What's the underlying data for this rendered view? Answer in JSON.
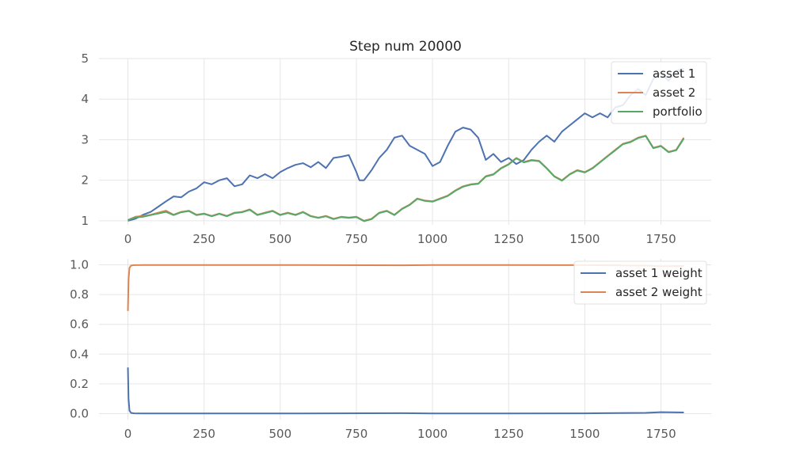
{
  "figure": {
    "title": "Step num 20000"
  },
  "colors": {
    "blue": "#4c72b0",
    "orange": "#dd8452",
    "green": "#55a868"
  },
  "chart_data": [
    {
      "id": "prices",
      "type": "line",
      "title": "Step num 20000",
      "xlim": [
        -95,
        1915
      ],
      "ylim": [
        0.9,
        5.0
      ],
      "xticks": [
        0,
        250,
        500,
        750,
        1000,
        1250,
        1500,
        1750
      ],
      "yticks": [
        1,
        2,
        3,
        4,
        5
      ],
      "legend_position": "top-right",
      "grid": true,
      "series": [
        {
          "name": "asset 1",
          "color": "#4c72b0",
          "x": [
            0,
            25,
            50,
            75,
            100,
            125,
            150,
            175,
            200,
            225,
            250,
            275,
            300,
            325,
            350,
            375,
            400,
            425,
            450,
            475,
            500,
            525,
            550,
            575,
            600,
            625,
            650,
            675,
            700,
            725,
            750,
            760,
            775,
            800,
            825,
            850,
            875,
            900,
            925,
            950,
            975,
            1000,
            1025,
            1050,
            1075,
            1100,
            1125,
            1150,
            1175,
            1200,
            1225,
            1250,
            1275,
            1300,
            1325,
            1350,
            1375,
            1400,
            1425,
            1450,
            1475,
            1500,
            1525,
            1550,
            1575,
            1600,
            1625,
            1650,
            1675,
            1700,
            1725,
            1750,
            1775,
            1800,
            1825
          ],
          "values": [
            1.0,
            1.05,
            1.15,
            1.22,
            1.35,
            1.48,
            1.6,
            1.58,
            1.72,
            1.8,
            1.95,
            1.9,
            2.0,
            2.05,
            1.85,
            1.9,
            2.12,
            2.05,
            2.15,
            2.05,
            2.2,
            2.3,
            2.38,
            2.42,
            2.32,
            2.45,
            2.3,
            2.55,
            2.58,
            2.62,
            2.2,
            2.0,
            2.0,
            2.25,
            2.55,
            2.75,
            3.05,
            3.1,
            2.85,
            2.75,
            2.65,
            2.35,
            2.45,
            2.85,
            3.2,
            3.3,
            3.25,
            3.05,
            2.5,
            2.65,
            2.45,
            2.55,
            2.4,
            2.5,
            2.75,
            2.95,
            3.1,
            2.95,
            3.2,
            3.35,
            3.5,
            3.65,
            3.55,
            3.65,
            3.55,
            3.8,
            3.85,
            4.1,
            4.25,
            4.1,
            4.5,
            4.65,
            4.45,
            4.7,
            4.75
          ]
        },
        {
          "name": "asset 2",
          "color": "#dd8452",
          "x": [
            0,
            25,
            50,
            75,
            100,
            125,
            150,
            175,
            200,
            225,
            250,
            275,
            300,
            325,
            350,
            375,
            400,
            425,
            450,
            475,
            500,
            525,
            550,
            575,
            600,
            625,
            650,
            675,
            700,
            725,
            750,
            775,
            800,
            825,
            850,
            875,
            900,
            925,
            950,
            975,
            1000,
            1025,
            1050,
            1075,
            1100,
            1125,
            1150,
            1175,
            1200,
            1225,
            1250,
            1275,
            1300,
            1325,
            1350,
            1375,
            1400,
            1425,
            1450,
            1475,
            1500,
            1525,
            1550,
            1575,
            1600,
            1625,
            1650,
            1675,
            1700,
            1725,
            1750,
            1775,
            1800,
            1825
          ],
          "values": [
            1.02,
            1.1,
            1.12,
            1.15,
            1.2,
            1.25,
            1.15,
            1.22,
            1.25,
            1.15,
            1.18,
            1.12,
            1.18,
            1.12,
            1.2,
            1.22,
            1.28,
            1.15,
            1.2,
            1.25,
            1.15,
            1.2,
            1.15,
            1.22,
            1.12,
            1.08,
            1.12,
            1.05,
            1.1,
            1.08,
            1.1,
            1.0,
            1.05,
            1.2,
            1.25,
            1.15,
            1.3,
            1.4,
            1.55,
            1.5,
            1.48,
            1.55,
            1.62,
            1.75,
            1.85,
            1.9,
            1.92,
            2.1,
            2.15,
            2.3,
            2.4,
            2.55,
            2.45,
            2.5,
            2.48,
            2.3,
            2.1,
            2.0,
            2.15,
            2.25,
            2.2,
            2.3,
            2.45,
            2.6,
            2.75,
            2.9,
            2.95,
            3.05,
            3.1,
            2.8,
            2.85,
            2.7,
            2.75,
            3.05
          ]
        },
        {
          "name": "portfolio",
          "color": "#55a868",
          "x": [
            0,
            25,
            50,
            75,
            100,
            125,
            150,
            175,
            200,
            225,
            250,
            275,
            300,
            325,
            350,
            375,
            400,
            425,
            450,
            475,
            500,
            525,
            550,
            575,
            600,
            625,
            650,
            675,
            700,
            725,
            750,
            775,
            800,
            825,
            850,
            875,
            900,
            925,
            950,
            975,
            1000,
            1025,
            1050,
            1075,
            1100,
            1125,
            1150,
            1175,
            1200,
            1225,
            1250,
            1275,
            1300,
            1325,
            1350,
            1375,
            1400,
            1425,
            1450,
            1475,
            1500,
            1525,
            1550,
            1575,
            1600,
            1625,
            1650,
            1675,
            1700,
            1725,
            1750,
            1775,
            1800,
            1825
          ],
          "values": [
            1.02,
            1.08,
            1.1,
            1.14,
            1.18,
            1.22,
            1.14,
            1.21,
            1.24,
            1.14,
            1.17,
            1.11,
            1.17,
            1.11,
            1.19,
            1.21,
            1.27,
            1.14,
            1.19,
            1.24,
            1.14,
            1.19,
            1.14,
            1.21,
            1.11,
            1.07,
            1.11,
            1.04,
            1.09,
            1.07,
            1.09,
            0.99,
            1.04,
            1.19,
            1.24,
            1.14,
            1.29,
            1.39,
            1.54,
            1.49,
            1.47,
            1.54,
            1.61,
            1.74,
            1.84,
            1.89,
            1.91,
            2.09,
            2.14,
            2.29,
            2.39,
            2.54,
            2.44,
            2.49,
            2.47,
            2.29,
            2.09,
            1.99,
            2.14,
            2.24,
            2.19,
            2.29,
            2.44,
            2.59,
            2.74,
            2.89,
            2.94,
            3.04,
            3.09,
            2.79,
            2.84,
            2.69,
            2.74,
            3.03
          ]
        }
      ]
    },
    {
      "id": "weights",
      "type": "line",
      "xlim": [
        -95,
        1915
      ],
      "ylim": [
        -0.04,
        1.04
      ],
      "xticks": [
        0,
        250,
        500,
        750,
        1000,
        1250,
        1500,
        1750
      ],
      "yticks": [
        0.0,
        0.2,
        0.4,
        0.6,
        0.8,
        1.0
      ],
      "ytick_labels": [
        "0.0",
        "0.2",
        "0.4",
        "0.6",
        "0.8",
        "1.0"
      ],
      "legend_position": "top-right",
      "grid": true,
      "series": [
        {
          "name": "asset 1 weight",
          "color": "#4c72b0",
          "x": [
            0,
            2,
            5,
            10,
            20,
            50,
            100,
            500,
            900,
            1000,
            1500,
            1700,
            1750,
            1825
          ],
          "values": [
            0.31,
            0.1,
            0.02,
            0.005,
            0.002,
            0.001,
            0.001,
            0.001,
            0.003,
            0.001,
            0.002,
            0.005,
            0.01,
            0.008
          ]
        },
        {
          "name": "asset 2 weight",
          "color": "#dd8452",
          "x": [
            0,
            2,
            5,
            10,
            20,
            50,
            100,
            500,
            900,
            1000,
            1500,
            1700,
            1750,
            1825
          ],
          "values": [
            0.69,
            0.9,
            0.98,
            0.995,
            0.998,
            0.999,
            0.999,
            0.999,
            0.997,
            0.999,
            0.998,
            0.995,
            0.99,
            0.992
          ]
        }
      ]
    }
  ]
}
